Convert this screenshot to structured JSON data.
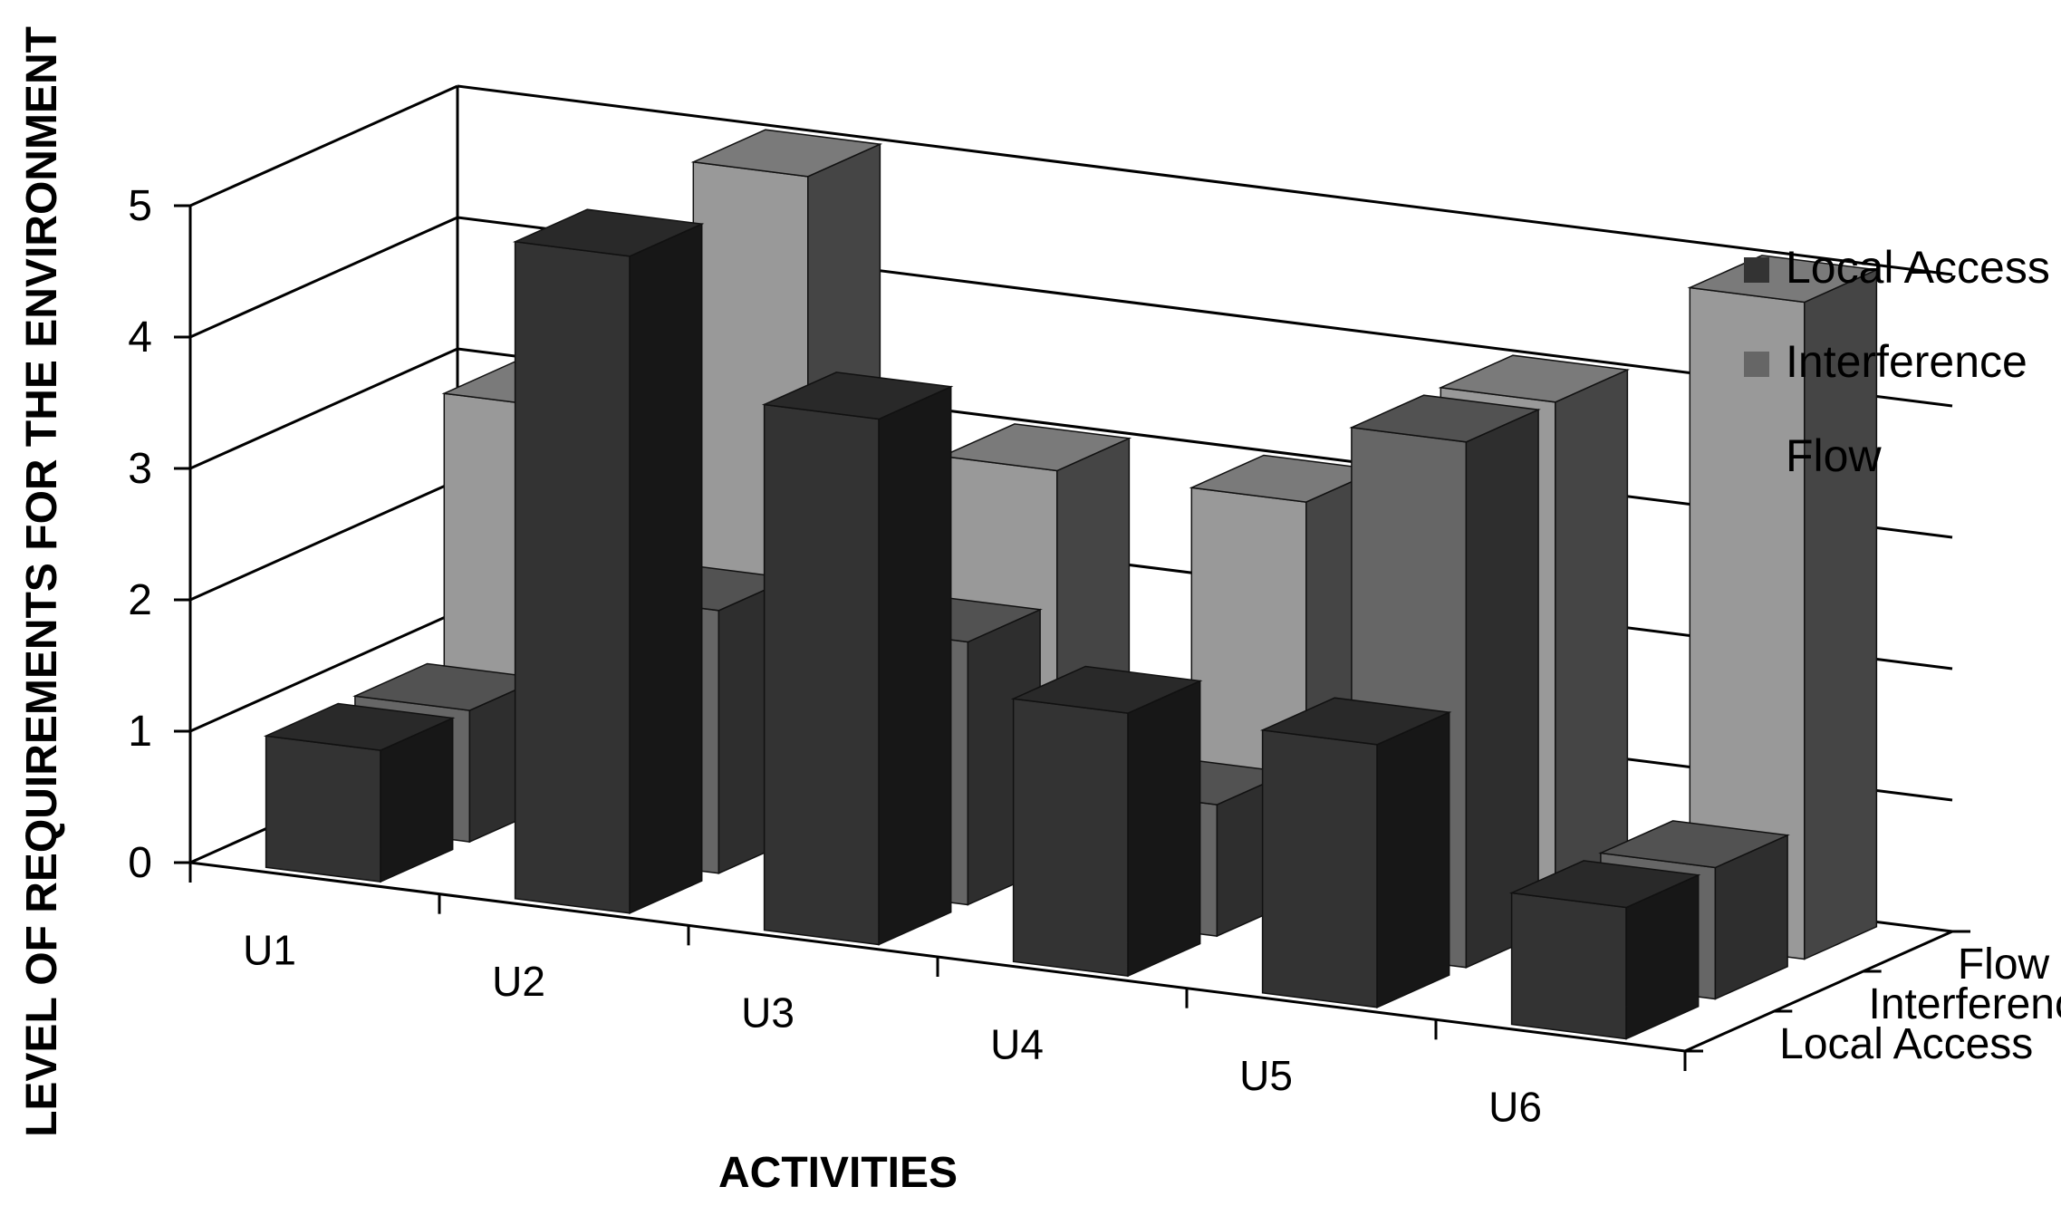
{
  "chart_data": {
    "type": "bar",
    "subtype": "3d-clustered-column",
    "title": "",
    "xlabel": "ACTIVITIES",
    "ylabel": "LEVEL OF REQUIREMENTS FOR THE ENVIRONMENT",
    "ylim": [
      0,
      5
    ],
    "yticks": [
      "0",
      "1",
      "2",
      "3",
      "4",
      "5"
    ],
    "categories": [
      "U1",
      "U2",
      "U3",
      "U4",
      "U5",
      "U6"
    ],
    "depth_labels": [
      "Local Access",
      "Interference",
      "Flow"
    ],
    "series": [
      {
        "name": "Local Access",
        "values": [
          1,
          5,
          4,
          2,
          2,
          1
        ],
        "color": "#333333"
      },
      {
        "name": "Interference",
        "values": [
          1,
          2,
          2,
          1,
          4,
          1
        ],
        "color": "#666666"
      },
      {
        "name": "Flow",
        "values": [
          3,
          5,
          3,
          3,
          4,
          5
        ],
        "color": "#999999"
      }
    ],
    "legend": {
      "position": "right"
    },
    "grid": true
  }
}
